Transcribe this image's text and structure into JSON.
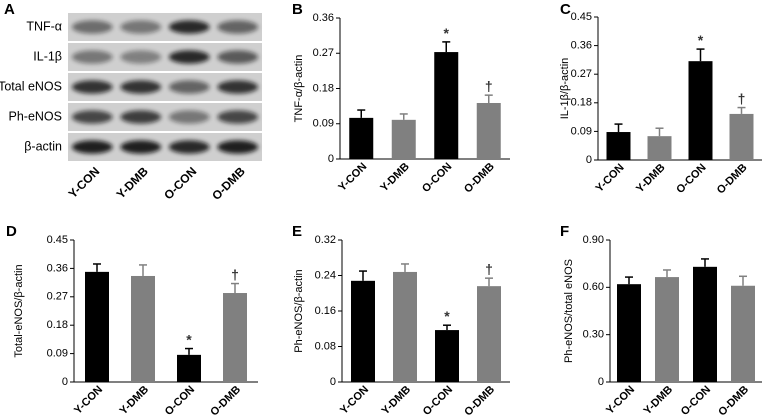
{
  "chart_data": [
    {
      "type": "blot",
      "panel": "A",
      "rows": [
        "TNF-α",
        "IL-1β",
        "Total eNOS",
        "Ph-eNOS",
        "β-actin"
      ],
      "categories": [
        "Y-CON",
        "Y-DMB",
        "O-CON",
        "O-DMB"
      ]
    },
    {
      "type": "bar",
      "panel": "B",
      "ylabel": "TNF-α/β-actin",
      "categories": [
        "Y-CON",
        "Y-DMB",
        "O-CON",
        "O-DMB"
      ],
      "values": [
        0.105,
        0.1,
        0.273,
        0.143
      ],
      "errors": [
        0.02,
        0.015,
        0.026,
        0.02
      ],
      "annotations": [
        null,
        null,
        "*",
        "†"
      ],
      "colors": [
        "#000000",
        "#808080",
        "#000000",
        "#808080"
      ],
      "ylim": [
        0,
        0.36
      ],
      "yticks": [
        0,
        0.09,
        0.18,
        0.27,
        0.36
      ]
    },
    {
      "type": "bar",
      "panel": "C",
      "ylabel": "IL-1β/β-actin",
      "categories": [
        "Y-CON",
        "Y-DMB",
        "O-CON",
        "O-DMB"
      ],
      "values": [
        0.088,
        0.075,
        0.311,
        0.145
      ],
      "errors": [
        0.025,
        0.025,
        0.038,
        0.02
      ],
      "annotations": [
        null,
        null,
        "*",
        "†"
      ],
      "colors": [
        "#000000",
        "#808080",
        "#000000",
        "#808080"
      ],
      "ylim": [
        0,
        0.45
      ],
      "yticks": [
        0,
        0.09,
        0.18,
        0.27,
        0.36,
        0.45
      ]
    },
    {
      "type": "bar",
      "panel": "D",
      "ylabel": "Total-eNOS/β-actin",
      "categories": [
        "Y-CON",
        "Y-DMB",
        "O-CON",
        "O-DMB"
      ],
      "values": [
        0.349,
        0.336,
        0.086,
        0.282
      ],
      "errors": [
        0.025,
        0.035,
        0.02,
        0.03
      ],
      "annotations": [
        null,
        null,
        "*",
        "†"
      ],
      "colors": [
        "#000000",
        "#808080",
        "#000000",
        "#808080"
      ],
      "ylim": [
        0,
        0.45
      ],
      "yticks": [
        0,
        0.09,
        0.18,
        0.27,
        0.36,
        0.45
      ]
    },
    {
      "type": "bar",
      "panel": "E",
      "ylabel": "Ph-eNOS/β-actin",
      "categories": [
        "Y-CON",
        "Y-DMB",
        "O-CON",
        "O-DMB"
      ],
      "values": [
        0.228,
        0.248,
        0.117,
        0.216
      ],
      "errors": [
        0.022,
        0.018,
        0.011,
        0.018
      ],
      "annotations": [
        null,
        null,
        "*",
        "†"
      ],
      "colors": [
        "#000000",
        "#808080",
        "#000000",
        "#808080"
      ],
      "ylim": [
        0,
        0.32
      ],
      "yticks": [
        0,
        0.08,
        0.16,
        0.24,
        0.32
      ]
    },
    {
      "type": "bar",
      "panel": "F",
      "ylabel": "Ph-eNOS/total eNOS",
      "categories": [
        "Y-CON",
        "Y-DMB",
        "O-CON",
        "O-DMB"
      ],
      "values": [
        0.62,
        0.665,
        0.73,
        0.61
      ],
      "errors": [
        0.045,
        0.045,
        0.05,
        0.06
      ],
      "colors": [
        "#000000",
        "#808080",
        "#000000",
        "#808080"
      ],
      "ylim": [
        0,
        0.9
      ],
      "yticks": [
        0,
        {
          "value": 0.3,
          "label": "0.30"
        },
        {
          "value": 0.6,
          "label": "0.60"
        },
        {
          "value": 0.9,
          "label": "0.90"
        }
      ]
    }
  ]
}
